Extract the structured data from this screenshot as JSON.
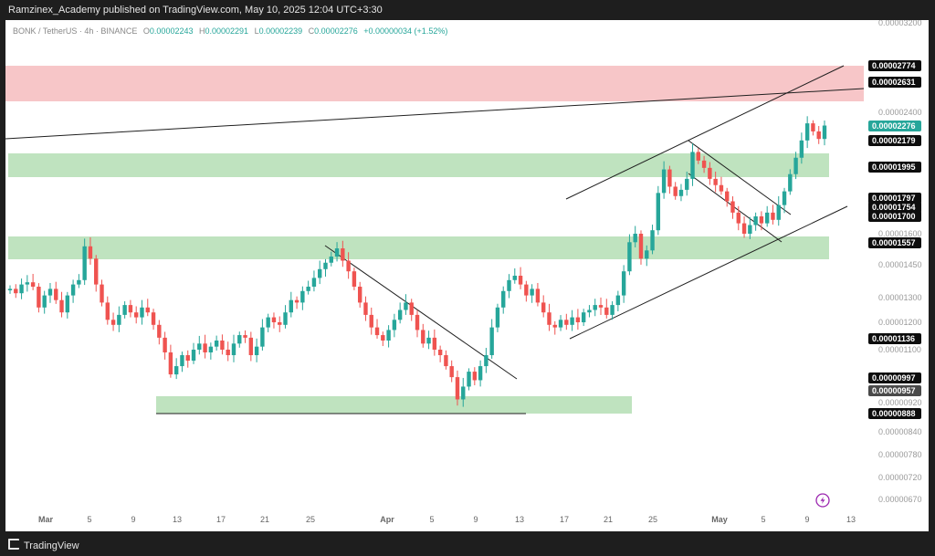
{
  "header": {
    "published": "Ramzinex_Academy published on TradingView.com, May 10, 2025 12:04 UTC+3:30"
  },
  "legend": {
    "symbol": "BONK / TetherUS · 4h · BINANCE",
    "open_label": "O",
    "open": "0.00002243",
    "high_label": "H",
    "high": "0.00002291",
    "low_label": "L",
    "low": "0.00002239",
    "close_label": "C",
    "close": "0.00002276",
    "change": "+0.00000034 (+1.52%)"
  },
  "footer": {
    "brand": "TradingView"
  },
  "colors": {
    "up": "#26a69a",
    "down": "#ef5350",
    "zone_resistance": "#f7c6c8",
    "zone_support": "#bfe3bf",
    "line": "#1f1f1f"
  },
  "chart_data": {
    "type": "candlestick",
    "symbol": "BONK / TetherUS",
    "interval": "4h",
    "exchange": "BINANCE",
    "y_axis_ticks": [
      "0.00003200",
      "0.00002400",
      "0.00001600",
      "0.00001450",
      "0.00001300",
      "0.00001200",
      "0.00001100",
      "0.00000920",
      "0.00000840",
      "0.00000780",
      "0.00000720",
      "0.00000670"
    ],
    "x_axis_ticks": [
      "Mar",
      "5",
      "9",
      "13",
      "17",
      "21",
      "25",
      "Apr",
      "5",
      "9",
      "13",
      "17",
      "21",
      "25",
      "May",
      "5",
      "9",
      "13"
    ],
    "price_badges": [
      {
        "label": "0.00002774",
        "style": "black"
      },
      {
        "label": "0.00002631",
        "style": "black"
      },
      {
        "label": "0.00002276",
        "style": "green"
      },
      {
        "label": "0.00002179",
        "style": "black"
      },
      {
        "label": "0.00001995",
        "style": "black"
      },
      {
        "label": "0.00001797",
        "style": "black"
      },
      {
        "label": "0.00001754",
        "style": "black"
      },
      {
        "label": "0.00001700",
        "style": "black"
      },
      {
        "label": "0.00001557",
        "style": "black"
      },
      {
        "label": "0.00001136",
        "style": "black"
      },
      {
        "label": "0.00000997",
        "style": "black"
      },
      {
        "label": "0.00000957",
        "style": "gray"
      },
      {
        "label": "0.00000888",
        "style": "black"
      }
    ],
    "zones": [
      {
        "kind": "resistance",
        "from": 2.631e-05,
        "to": 2.774e-05
      },
      {
        "kind": "support",
        "from": 1.995e-05,
        "to": 2.179e-05
      },
      {
        "kind": "support",
        "from": 1.557e-05,
        "to": 1.7e-05
      },
      {
        "kind": "support",
        "from": 8.88e-06,
        "to": 9.57e-06
      }
    ],
    "candles_close": [
      1.34e-05,
      1.32e-05,
      1.36e-05,
      1.37e-05,
      1.35e-05,
      1.26e-05,
      1.31e-05,
      1.34e-05,
      1.29e-05,
      1.24e-05,
      1.31e-05,
      1.36e-05,
      1.38e-05,
      1.54e-05,
      1.48e-05,
      1.36e-05,
      1.28e-05,
      1.21e-05,
      1.19e-05,
      1.23e-05,
      1.27e-05,
      1.24e-05,
      1.22e-05,
      1.26e-05,
      1.24e-05,
      1.19e-05,
      1.14e-05,
      1.09e-05,
      1.01e-05,
      1.04e-05,
      1.08e-05,
      1.06e-05,
      1.1e-05,
      1.12e-05,
      1.09e-05,
      1.11e-05,
      1.13e-05,
      1.1e-05,
      1.08e-05,
      1.12e-05,
      1.15e-05,
      1.14e-05,
      1.08e-05,
      1.11e-05,
      1.18e-05,
      1.22e-05,
      1.2e-05,
      1.19e-05,
      1.24e-05,
      1.29e-05,
      1.28e-05,
      1.33e-05,
      1.35e-05,
      1.39e-05,
      1.43e-05,
      1.46e-05,
      1.49e-05,
      1.53e-05,
      1.47e-05,
      1.42e-05,
      1.35e-05,
      1.28e-05,
      1.23e-05,
      1.18e-05,
      1.15e-05,
      1.13e-05,
      1.17e-05,
      1.21e-05,
      1.25e-05,
      1.28e-05,
      1.23e-05,
      1.17e-05,
      1.12e-05,
      1.14e-05,
      1.1e-05,
      1.08e-05,
      1.04e-05,
      1e-05,
      9.3e-06,
      9.7e-06,
      1.02e-05,
      9.9e-06,
      1.04e-05,
      1.08e-05,
      1.18e-05,
      1.26e-05,
      1.33e-05,
      1.38e-05,
      1.4e-05,
      1.36e-05,
      1.31e-05,
      1.34e-05,
      1.28e-05,
      1.24e-05,
      1.19e-05,
      1.18e-05,
      1.21e-05,
      1.19e-05,
      1.22e-05,
      1.2e-05,
      1.24e-05,
      1.25e-05,
      1.27e-05,
      1.26e-05,
      1.23e-05,
      1.27e-05,
      1.31e-05,
      1.42e-05,
      1.56e-05,
      1.6e-05,
      1.48e-05,
      1.52e-05,
      1.62e-05,
      1.83e-05,
      1.98e-05,
      1.87e-05,
      1.81e-05,
      1.85e-05,
      1.92e-05,
      2.1e-05,
      2.04e-05,
      1.99e-05,
      1.92e-05,
      1.88e-05,
      1.84e-05,
      1.78e-05,
      1.72e-05,
      1.66e-05,
      1.6e-05,
      1.65e-05,
      1.7e-05,
      1.66e-05,
      1.72e-05,
      1.68e-05,
      1.76e-05,
      1.84e-05,
      1.95e-05,
      2.06e-05,
      2.18e-05,
      2.3e-05,
      2.24e-05,
      2.19e-05,
      2.28e-05
    ]
  }
}
